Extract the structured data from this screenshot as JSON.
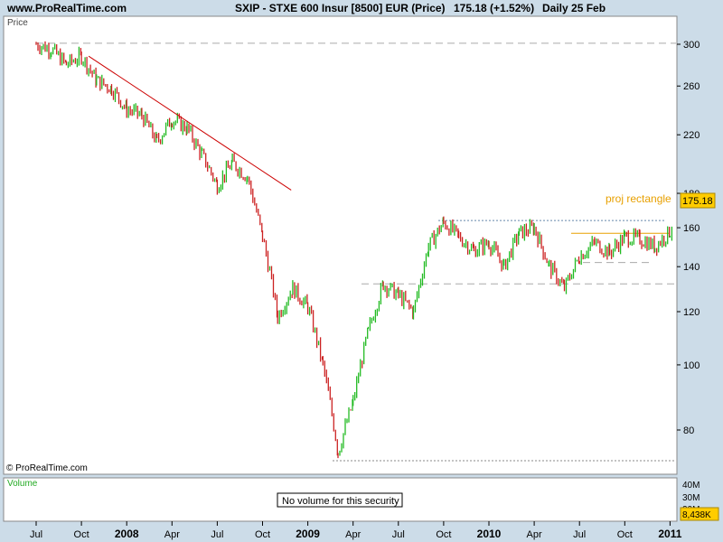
{
  "header": {
    "site": "www.ProRealTime.com",
    "symbol": "SXIP - STXE 600 Insur [8500] EUR (Price)",
    "price": "175.18 (+1.52%)",
    "period": "Daily  25 Feb"
  },
  "price_panel": {
    "label": "Price",
    "copyright": "© ProRealTime.com",
    "annotation": "proj rectangle",
    "last_price_label": "175.18"
  },
  "volume_panel": {
    "label": "Volume",
    "no_volume_text": "No volume for this security",
    "last_volume_label": "8,438K",
    "y_ticks": [
      "40M",
      "30M",
      "20M"
    ]
  },
  "colors": {
    "up": "#22bb22",
    "down": "#cc2222",
    "trendline": "#cc0000",
    "resistance": "#6688aa",
    "annotation": "#e8a000",
    "price_badge": "#ffcc00"
  },
  "chart_data": {
    "type": "candlestick",
    "y_scale": "log",
    "y_ticks": [
      80,
      100,
      120,
      140,
      160,
      180,
      220,
      260,
      300
    ],
    "ylim": [
      70,
      310
    ],
    "x_ticks": [
      "Jul",
      "Oct",
      "2008",
      "Apr",
      "Jul",
      "Oct",
      "2009",
      "Apr",
      "Jul",
      "Oct",
      "2010",
      "Apr",
      "Jul",
      "Oct",
      "2011"
    ],
    "last_price": 175.18,
    "change_pct": 1.52,
    "series": {
      "dates": [
        "2007-07",
        "2007-08",
        "2007-09",
        "2007-10",
        "2007-11",
        "2007-12",
        "2008-01",
        "2008-02",
        "2008-03",
        "2008-04",
        "2008-05",
        "2008-06",
        "2008-07",
        "2008-08",
        "2008-09",
        "2008-10",
        "2008-11",
        "2008-12",
        "2009-01",
        "2009-02",
        "2009-03",
        "2009-04",
        "2009-05",
        "2009-06",
        "2009-07",
        "2009-08",
        "2009-09",
        "2009-10",
        "2009-11",
        "2009-12",
        "2010-01",
        "2010-02",
        "2010-03",
        "2010-04",
        "2010-05",
        "2010-06",
        "2010-07",
        "2010-08",
        "2010-09",
        "2010-10",
        "2010-11",
        "2010-12",
        "2011-01",
        "2011-02"
      ],
      "close": [
        300,
        295,
        280,
        288,
        265,
        258,
        240,
        235,
        215,
        232,
        225,
        205,
        185,
        200,
        190,
        155,
        118,
        130,
        122,
        100,
        74,
        88,
        112,
        132,
        127,
        120,
        150,
        163,
        155,
        148,
        152,
        140,
        157,
        160,
        140,
        130,
        145,
        152,
        147,
        155,
        154,
        150,
        158,
        176
      ]
    },
    "trendline": {
      "from": [
        "2007-10",
        288
      ],
      "to": [
        "2008-11",
        182
      ]
    },
    "horizontal_levels": [
      {
        "value": 301,
        "style": "dashed",
        "color": "#aaaaaa"
      },
      {
        "value": 164,
        "style": "dotted",
        "color": "#6688aa"
      },
      {
        "value": 157,
        "style": "solid",
        "color": "#e8a000"
      },
      {
        "value": 142,
        "style": "dashed",
        "color": "#aaaaaa"
      },
      {
        "value": 132,
        "style": "dashed",
        "color": "#aaaaaa"
      },
      {
        "value": 72,
        "style": "dotted",
        "color": "#888888"
      }
    ]
  }
}
